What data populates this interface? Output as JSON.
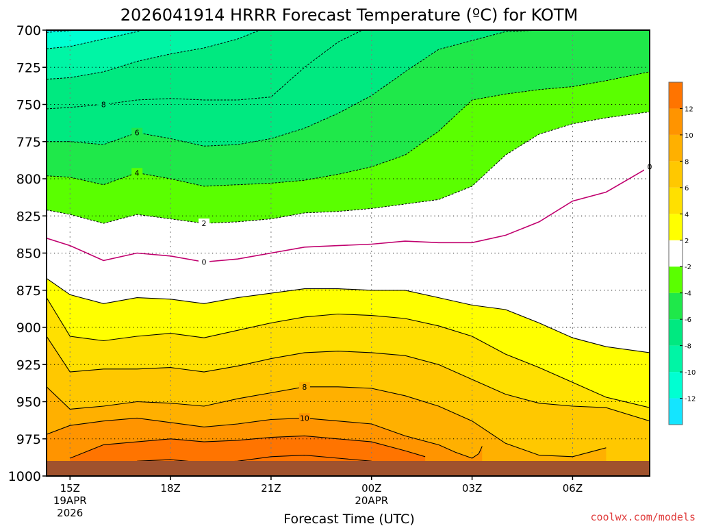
{
  "chart_data": {
    "type": "heatmap",
    "title": "2026041914 HRRR Forecast Temperature (ºC) for KOTM",
    "xlabel": "Forecast Time (UTC)",
    "ylabel": "",
    "credit": "coolwx.com/models",
    "x_range_hours_utc": [
      14.3,
      32.3
    ],
    "y_range_hPa": [
      700,
      1000
    ],
    "y_ticks": [
      700,
      725,
      750,
      775,
      800,
      825,
      850,
      875,
      900,
      925,
      950,
      975,
      1000
    ],
    "x_ticks": [
      {
        "hour": 15,
        "label": "15Z",
        "sub1": "19APR",
        "sub2": "2026"
      },
      {
        "hour": 18,
        "label": "18Z",
        "sub1": "",
        "sub2": ""
      },
      {
        "hour": 21,
        "label": "21Z",
        "sub1": "",
        "sub2": ""
      },
      {
        "hour": 24,
        "label": "00Z",
        "sub1": "20APR",
        "sub2": ""
      },
      {
        "hour": 27,
        "label": "03Z",
        "sub1": "",
        "sub2": ""
      },
      {
        "hour": 30,
        "label": "06Z",
        "sub1": "",
        "sub2": ""
      }
    ],
    "grid": true,
    "legend_position": "right",
    "colorbar": {
      "levels": [
        -14,
        -12,
        -10,
        -8,
        -6,
        -4,
        -2,
        2,
        4,
        6,
        8,
        10,
        12,
        14
      ],
      "labels": [
        "-12",
        "-10",
        "-8",
        "-6",
        "-4",
        "-2",
        "2",
        "4",
        "6",
        "8",
        "10",
        "12"
      ],
      "colors": [
        "#14e5ff",
        "#00ffd2",
        "#00f5a5",
        "#00e980",
        "#1fe84a",
        "#5aff00",
        "#ffffff",
        "#ffff00",
        "#ffe000",
        "#ffc800",
        "#ffb000",
        "#ff9400",
        "#ff7400"
      ]
    },
    "surface_color": "#a0522d",
    "isotherms": [
      {
        "value": -12,
        "label": "",
        "points": [
          [
            14.3,
            701.5
          ],
          [
            15.5,
            699.5
          ],
          [
            16,
            693
          ]
        ]
      },
      {
        "value": -10,
        "label": "",
        "points": [
          [
            14.3,
            712.5
          ],
          [
            15,
            711
          ],
          [
            16,
            706
          ],
          [
            17,
            701
          ],
          [
            17.5,
            697
          ]
        ]
      },
      {
        "value": -8,
        "label": "",
        "points": [
          [
            14.3,
            733
          ],
          [
            15,
            732
          ],
          [
            16,
            728
          ],
          [
            17,
            721
          ],
          [
            18,
            716
          ],
          [
            19,
            712
          ],
          [
            20,
            706
          ],
          [
            21,
            697
          ]
        ]
      },
      {
        "value": -8,
        "label": "8",
        "labelAt": 2,
        "points": [
          [
            14.3,
            753
          ],
          [
            15,
            752
          ],
          [
            16,
            750
          ],
          [
            17,
            747
          ],
          [
            18,
            746
          ],
          [
            19,
            747
          ],
          [
            20,
            747
          ],
          [
            21,
            745
          ],
          [
            22,
            725
          ],
          [
            23,
            708
          ],
          [
            24,
            697
          ]
        ]
      },
      {
        "value": -6,
        "label": "6",
        "labelAt": 3,
        "points": [
          [
            14.3,
            775
          ],
          [
            15,
            775
          ],
          [
            16,
            777
          ],
          [
            17,
            769
          ],
          [
            18,
            773
          ],
          [
            19,
            778
          ],
          [
            20,
            777
          ],
          [
            21,
            773
          ],
          [
            22,
            766
          ],
          [
            23,
            756
          ],
          [
            24,
            744
          ],
          [
            25,
            728
          ],
          [
            26,
            713
          ],
          [
            27,
            707
          ],
          [
            28,
            701
          ],
          [
            29,
            700
          ],
          [
            30,
            697
          ]
        ]
      },
      {
        "value": -4,
        "label": "4",
        "labelAt": 3,
        "points": [
          [
            14.3,
            798
          ],
          [
            15,
            799
          ],
          [
            16,
            804
          ],
          [
            17,
            796
          ],
          [
            18,
            800
          ],
          [
            19,
            805
          ],
          [
            20,
            804
          ],
          [
            21,
            803
          ],
          [
            22,
            801
          ],
          [
            23,
            797
          ],
          [
            24,
            792
          ],
          [
            25,
            784
          ],
          [
            26,
            768
          ],
          [
            27,
            747
          ],
          [
            28,
            743
          ],
          [
            29,
            740
          ],
          [
            30,
            738
          ],
          [
            31,
            734
          ],
          [
            32.3,
            728
          ]
        ]
      },
      {
        "value": -2,
        "label": "2",
        "labelAt": 5,
        "points": [
          [
            14.3,
            821
          ],
          [
            15,
            824
          ],
          [
            16,
            830
          ],
          [
            17,
            824
          ],
          [
            18,
            827
          ],
          [
            19,
            830
          ],
          [
            20,
            829
          ],
          [
            21,
            827
          ],
          [
            22,
            823
          ],
          [
            23,
            822
          ],
          [
            24,
            820
          ],
          [
            25,
            817
          ],
          [
            26,
            814
          ],
          [
            27,
            805
          ],
          [
            28,
            784
          ],
          [
            29,
            770
          ],
          [
            30,
            763
          ],
          [
            31,
            759
          ],
          [
            32.3,
            755
          ]
        ]
      },
      {
        "value": 0,
        "label": "0",
        "labelAt": 5,
        "labelAt2": 18,
        "points": [
          [
            14.3,
            840
          ],
          [
            15,
            845
          ],
          [
            16,
            855
          ],
          [
            17,
            850
          ],
          [
            18,
            852
          ],
          [
            19,
            856
          ],
          [
            20,
            854
          ],
          [
            21,
            850
          ],
          [
            22,
            846
          ],
          [
            23,
            845
          ],
          [
            24,
            844
          ],
          [
            25,
            842
          ],
          [
            26,
            843
          ],
          [
            27,
            843
          ],
          [
            28,
            838
          ],
          [
            29,
            829
          ],
          [
            30,
            815
          ],
          [
            31,
            809
          ],
          [
            32.3,
            792
          ]
        ]
      },
      {
        "value": 2,
        "label": "",
        "points": [
          [
            14.3,
            867
          ],
          [
            15,
            878
          ],
          [
            16,
            884
          ],
          [
            17,
            880
          ],
          [
            18,
            881
          ],
          [
            19,
            884
          ],
          [
            20,
            880
          ],
          [
            21,
            877
          ],
          [
            22,
            874
          ],
          [
            23,
            874
          ],
          [
            24,
            875
          ],
          [
            25,
            875
          ],
          [
            26,
            880
          ],
          [
            27,
            885
          ],
          [
            28,
            888
          ],
          [
            29,
            897
          ],
          [
            30,
            907
          ],
          [
            31,
            913
          ],
          [
            32.3,
            917
          ]
        ]
      },
      {
        "value": 4,
        "label": "",
        "points": [
          [
            14.3,
            880
          ],
          [
            15,
            906
          ],
          [
            16,
            909
          ],
          [
            17,
            906
          ],
          [
            18,
            904
          ],
          [
            19,
            907
          ],
          [
            20,
            902
          ],
          [
            21,
            897
          ],
          [
            22,
            893
          ],
          [
            23,
            891
          ],
          [
            24,
            892
          ],
          [
            25,
            894
          ],
          [
            26,
            899
          ],
          [
            27,
            906
          ],
          [
            28,
            918
          ],
          [
            29,
            927
          ],
          [
            30,
            937
          ],
          [
            31,
            947
          ],
          [
            32.3,
            954
          ]
        ]
      },
      {
        "value": 6,
        "label": "",
        "points": [
          [
            14.3,
            906
          ],
          [
            15,
            930
          ],
          [
            16,
            928
          ],
          [
            17,
            928
          ],
          [
            18,
            927
          ],
          [
            19,
            930
          ],
          [
            20,
            926
          ],
          [
            21,
            921
          ],
          [
            22,
            917
          ],
          [
            23,
            916
          ],
          [
            24,
            917
          ],
          [
            25,
            919
          ],
          [
            26,
            925
          ],
          [
            27,
            935
          ],
          [
            28,
            945
          ],
          [
            29,
            951
          ],
          [
            30,
            953
          ],
          [
            31,
            954
          ],
          [
            32.3,
            963
          ]
        ]
      },
      {
        "value": 8,
        "label": "8",
        "labelAt": 8,
        "points": [
          [
            14.3,
            940
          ],
          [
            15,
            955
          ],
          [
            16,
            953
          ],
          [
            17,
            950
          ],
          [
            18,
            951
          ],
          [
            19,
            953
          ],
          [
            20,
            948
          ],
          [
            21,
            944
          ],
          [
            22,
            940
          ],
          [
            23,
            940
          ],
          [
            24,
            941
          ],
          [
            25,
            946
          ],
          [
            26,
            953
          ],
          [
            27,
            963
          ],
          [
            28,
            978
          ],
          [
            29,
            986
          ],
          [
            30,
            987
          ],
          [
            30.5,
            984
          ],
          [
            31,
            981
          ]
        ]
      },
      {
        "value": 10,
        "label": "10",
        "labelAt": 8,
        "points": [
          [
            14.3,
            972
          ],
          [
            15,
            966
          ],
          [
            16,
            963
          ],
          [
            17,
            961
          ],
          [
            18,
            964
          ],
          [
            19,
            967
          ],
          [
            20,
            965
          ],
          [
            21,
            962
          ],
          [
            22,
            961
          ],
          [
            23,
            963
          ],
          [
            24,
            965
          ],
          [
            25,
            973
          ],
          [
            26,
            979
          ],
          [
            26.5,
            984
          ],
          [
            27,
            988
          ],
          [
            27.2,
            985
          ],
          [
            27.3,
            980
          ]
        ]
      },
      {
        "value": 12,
        "label": "",
        "points": [
          [
            15,
            988
          ],
          [
            16,
            979
          ],
          [
            17,
            977
          ],
          [
            18,
            975
          ],
          [
            19,
            977
          ],
          [
            20,
            976
          ],
          [
            21,
            974
          ],
          [
            22,
            973
          ],
          [
            23,
            975
          ],
          [
            24,
            977
          ],
          [
            25,
            983
          ],
          [
            25.6,
            987
          ]
        ]
      },
      {
        "value": 14,
        "label": "",
        "points": [
          [
            17,
            990
          ],
          [
            18,
            989
          ],
          [
            19,
            991
          ],
          [
            20,
            990
          ],
          [
            21,
            987
          ],
          [
            22,
            986
          ],
          [
            23,
            988
          ],
          [
            24,
            990
          ]
        ]
      }
    ]
  }
}
